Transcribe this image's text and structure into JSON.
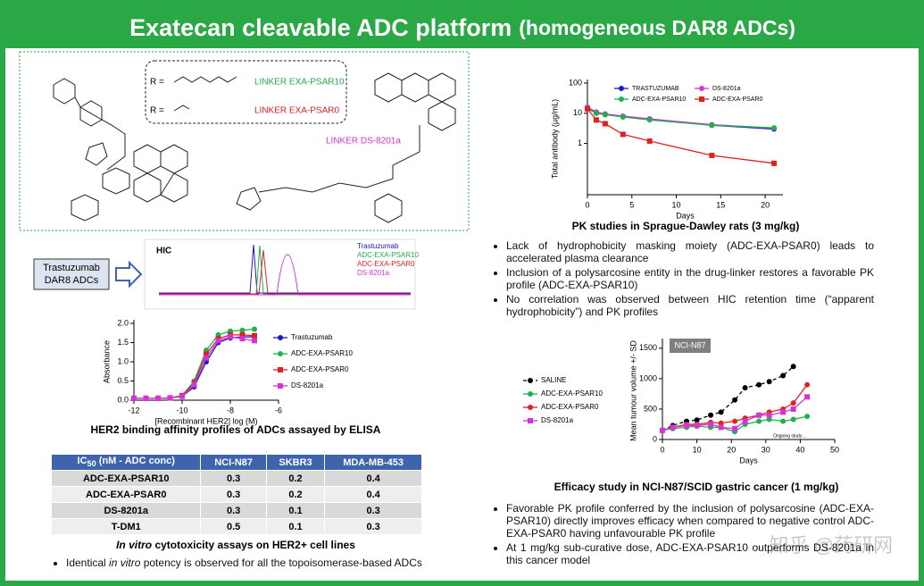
{
  "title": {
    "main": "Exatecan cleavable ADC platform",
    "sub": "(homogeneous DAR8 ADCs)"
  },
  "chemistry": {
    "r_label_1": "R =",
    "r_label_2": "R =",
    "linker_1": "LINKER EXA-PSAR10",
    "linker_2": "LINKER EXA-PSAR0",
    "linker_3": "LINKER DS-8201a"
  },
  "hic": {
    "label": "HIC",
    "box": [
      "Trastuzumab",
      "DAR8 ADCs"
    ],
    "legend": [
      "Trastuzumab",
      "ADC-EXA-PSAR10",
      "ADC-EXA-PSAR0",
      "DS-8201a"
    ]
  },
  "table": {
    "header": {
      "ic": "IC",
      "sub": "50",
      "rest": " (nM - ADC conc)",
      "cols": [
        "NCI-N87",
        "SKBR3",
        "MDA-MB-453"
      ]
    },
    "rows": [
      [
        "ADC-EXA-PSAR10",
        "0.3",
        "0.2",
        "0.4"
      ],
      [
        "ADC-EXA-PSAR0",
        "0.3",
        "0.2",
        "0.4"
      ],
      [
        "DS-8201a",
        "0.3",
        "0.1",
        "0.3"
      ],
      [
        "T-DM1",
        "0.5",
        "0.1",
        "0.3"
      ]
    ],
    "caption": {
      "italic": "In vitro",
      "rest": " cytotoxicity assays on HER2+ cell lines"
    }
  },
  "left_bullet": [
    "Identical ",
    "in vitro",
    " potency is observed for all the topoisomerase-based ADCs"
  ],
  "pk_bullets": [
    "Lack of hydrophobicity masking moiety (ADC-EXA-PSAR0) leads to accelerated plasma clearance",
    "Inclusion of a polysarcosine entity in the drug-linker restores a favorable PK profile (ADC-EXA-PSAR10)",
    "No correlation was observed between HIC retention time (“apparent hydrophobicity”) and PK profiles"
  ],
  "efficacy_bullets": [
    "Favorable PK profile conferred by the inclusion of polysarcosine (ADC-EXA-PSAR10) directly improves efficacy when compared to negative control ADC-EXA-PSAR0 having unfavourable PK profile",
    "At 1 mg/kg sub-curative dose, ADC-EXA-PSAR10 outperforms DS-8201a in this cancer model"
  ],
  "watermark": "知乎 @药研网",
  "chart_data": [
    {
      "type": "line",
      "title": "PK studies in Sprague-Dawley rats (3 mg/kg)",
      "x_label": "Days",
      "y_label": "Total antibody (µg/mL)",
      "log_y": true,
      "xlim": [
        0,
        22
      ],
      "ylim": [
        0.02,
        100
      ],
      "xticks": [
        0,
        5,
        10,
        15,
        20
      ],
      "yticks": [
        1,
        10,
        100
      ],
      "x": [
        0,
        1,
        2,
        4,
        7,
        14,
        21
      ],
      "series": [
        {
          "name": "TRASTUZUMAB",
          "color": "#1a1acc",
          "marker": "circle",
          "values": [
            15,
            10,
            9,
            8,
            6.5,
            4,
            3
          ]
        },
        {
          "name": "DS-8201a",
          "color": "#d633d6",
          "marker": "circle",
          "values": [
            16,
            11,
            9.5,
            8,
            6.5,
            4.2,
            3.2
          ]
        },
        {
          "name": "ADC-EXA-PSAR10",
          "color": "#22b04a",
          "marker": "circle",
          "values": [
            14,
            10,
            9,
            7.5,
            6,
            4,
            3.3
          ]
        },
        {
          "name": "ADC-EXA-PSAR0",
          "color": "#dd2222",
          "marker": "square",
          "values": [
            14,
            6,
            4.5,
            2,
            1.2,
            0.4,
            0.22
          ]
        }
      ]
    },
    {
      "type": "line",
      "title": "HER2 binding affinity profiles of ADCs assayed by ELISA",
      "x_label": "[Recombinant HER2] log (M)",
      "y_label": "Absorbance",
      "xlim": [
        -12,
        -6
      ],
      "ylim": [
        0,
        2
      ],
      "xticks": [
        -12,
        -10,
        -8,
        -6
      ],
      "yticks": [
        {
          "value": 0,
          "label": "0.0"
        },
        0.5,
        {
          "value": 1,
          "label": "1.0"
        },
        1.5,
        {
          "value": 2,
          "label": "2.0"
        }
      ],
      "x": [
        -12,
        -11.5,
        -11,
        -10.5,
        -10,
        -9.5,
        -9,
        -8.5,
        -8,
        -7.5,
        -7
      ],
      "series": [
        {
          "name": "Trastuzumab",
          "color": "#1a1acc",
          "marker": "circle",
          "values": [
            0.05,
            0.05,
            0.05,
            0.06,
            0.1,
            0.35,
            1.0,
            1.5,
            1.62,
            1.65,
            1.65
          ]
        },
        {
          "name": "ADC-EXA-PSAR10",
          "color": "#22b04a",
          "marker": "circle",
          "values": [
            0.05,
            0.05,
            0.05,
            0.06,
            0.12,
            0.5,
            1.3,
            1.7,
            1.8,
            1.82,
            1.85
          ]
        },
        {
          "name": "ADC-EXA-PSAR0",
          "color": "#dd2222",
          "marker": "square",
          "values": [
            0.05,
            0.05,
            0.05,
            0.06,
            0.12,
            0.45,
            1.2,
            1.6,
            1.7,
            1.7,
            1.68
          ]
        },
        {
          "name": "DS-8201a",
          "color": "#d633d6",
          "marker": "square",
          "values": [
            0.05,
            0.05,
            0.05,
            0.06,
            0.1,
            0.4,
            1.1,
            1.55,
            1.65,
            1.6,
            1.55
          ]
        }
      ]
    },
    {
      "type": "line",
      "title": "Efficacy study in NCI-N87/SCID gastric cancer (1 mg/kg)",
      "x_label": "Days",
      "y_label": "Mean tumour volume +/- SD",
      "annotations": [
        "NCI-N87",
        "Ongoing study ..."
      ],
      "xlim": [
        0,
        50
      ],
      "ylim": [
        0,
        1600
      ],
      "xticks": [
        0,
        10,
        20,
        30,
        40,
        50
      ],
      "yticks": [
        0,
        500,
        1000,
        1500
      ],
      "x": [
        0,
        3,
        7,
        10,
        14,
        17,
        21,
        24,
        28,
        31,
        35,
        38,
        42
      ],
      "series": [
        {
          "name": "SALINE",
          "color": "#000000",
          "marker": "circle",
          "dashed": true,
          "values": [
            150,
            230,
            300,
            320,
            400,
            450,
            650,
            850,
            900,
            950,
            1050,
            1200,
            null
          ]
        },
        {
          "name": "ADC-EXA-PSAR10",
          "color": "#22b04a",
          "marker": "circle",
          "values": [
            150,
            180,
            200,
            220,
            200,
            200,
            130,
            250,
            300,
            330,
            300,
            330,
            380
          ]
        },
        {
          "name": "ADC-EXA-PSAR0",
          "color": "#dd2222",
          "marker": "circle",
          "values": [
            150,
            200,
            250,
            250,
            280,
            270,
            300,
            350,
            400,
            450,
            500,
            600,
            900
          ]
        },
        {
          "name": "DS-8201a",
          "color": "#d633d6",
          "marker": "square",
          "values": [
            150,
            200,
            230,
            230,
            250,
            200,
            180,
            300,
            400,
            400,
            450,
            500,
            700
          ]
        }
      ]
    }
  ]
}
